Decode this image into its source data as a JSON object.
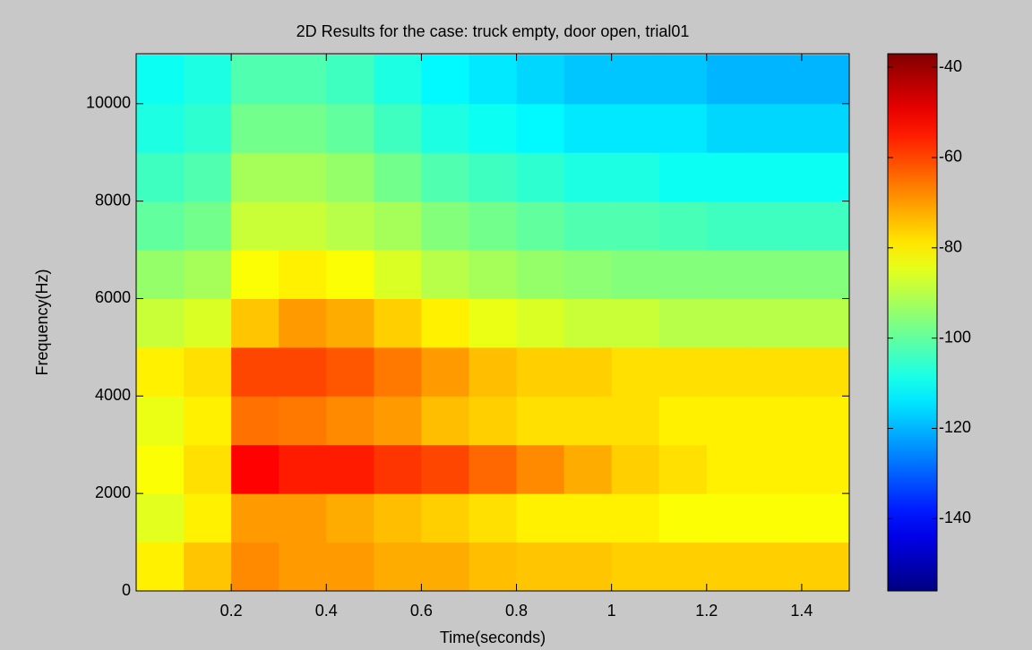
{
  "chart_data": {
    "type": "heatmap",
    "title": "2D Results for the case: truck empty, door open, trial01",
    "x_label": "Time(seconds)",
    "y_label": "Frequency(Hz)",
    "x": [
      0.05,
      0.15,
      0.25,
      0.35,
      0.45,
      0.55,
      0.65,
      0.75,
      0.85,
      0.95,
      1.05,
      1.15,
      1.25,
      1.35,
      1.45
    ],
    "y": [
      500,
      1500,
      2500,
      3500,
      4500,
      5500,
      6500,
      7500,
      8500,
      9500,
      10500
    ],
    "z": [
      [
        -80,
        -75,
        -68,
        -70,
        -70,
        -72,
        -72,
        -74,
        -75,
        -75,
        -76,
        -76,
        -76,
        -76,
        -76
      ],
      [
        -85,
        -80,
        -70,
        -70,
        -72,
        -74,
        -76,
        -78,
        -80,
        -80,
        -80,
        -82,
        -82,
        -82,
        -82
      ],
      [
        -82,
        -78,
        -52,
        -55,
        -55,
        -58,
        -60,
        -64,
        -68,
        -72,
        -76,
        -78,
        -80,
        -80,
        -80
      ],
      [
        -84,
        -80,
        -65,
        -66,
        -68,
        -70,
        -74,
        -76,
        -78,
        -78,
        -78,
        -80,
        -80,
        -80,
        -80
      ],
      [
        -80,
        -78,
        -60,
        -60,
        -62,
        -66,
        -70,
        -74,
        -76,
        -76,
        -78,
        -78,
        -78,
        -78,
        -78
      ],
      [
        -88,
        -86,
        -75,
        -70,
        -72,
        -76,
        -80,
        -84,
        -86,
        -88,
        -88,
        -90,
        -90,
        -90,
        -90
      ],
      [
        -94,
        -92,
        -82,
        -80,
        -82,
        -86,
        -90,
        -92,
        -94,
        -95,
        -96,
        -96,
        -96,
        -96,
        -96
      ],
      [
        -100,
        -98,
        -88,
        -88,
        -90,
        -92,
        -96,
        -98,
        -100,
        -102,
        -102,
        -103,
        -104,
        -104,
        -104
      ],
      [
        -104,
        -102,
        -92,
        -92,
        -94,
        -98,
        -102,
        -104,
        -106,
        -108,
        -108,
        -110,
        -110,
        -110,
        -110
      ],
      [
        -108,
        -106,
        -98,
        -98,
        -100,
        -104,
        -108,
        -110,
        -112,
        -114,
        -114,
        -114,
        -116,
        -116,
        -116
      ],
      [
        -110,
        -108,
        -102,
        -102,
        -104,
        -108,
        -112,
        -114,
        -116,
        -118,
        -118,
        -118,
        -120,
        -120,
        -120
      ]
    ],
    "xlim": [
      0,
      1.5
    ],
    "xticks": [
      0.2,
      0.4,
      0.6,
      0.8,
      1,
      1.2,
      1.4
    ],
    "ylim": [
      0,
      11025
    ],
    "yticks": [
      0,
      2000,
      4000,
      6000,
      8000,
      10000
    ],
    "clim": [
      -156,
      -37
    ],
    "cticks": [
      -140,
      -120,
      -100,
      -80,
      -60,
      -40
    ],
    "colormap": "jet",
    "grid": false
  }
}
